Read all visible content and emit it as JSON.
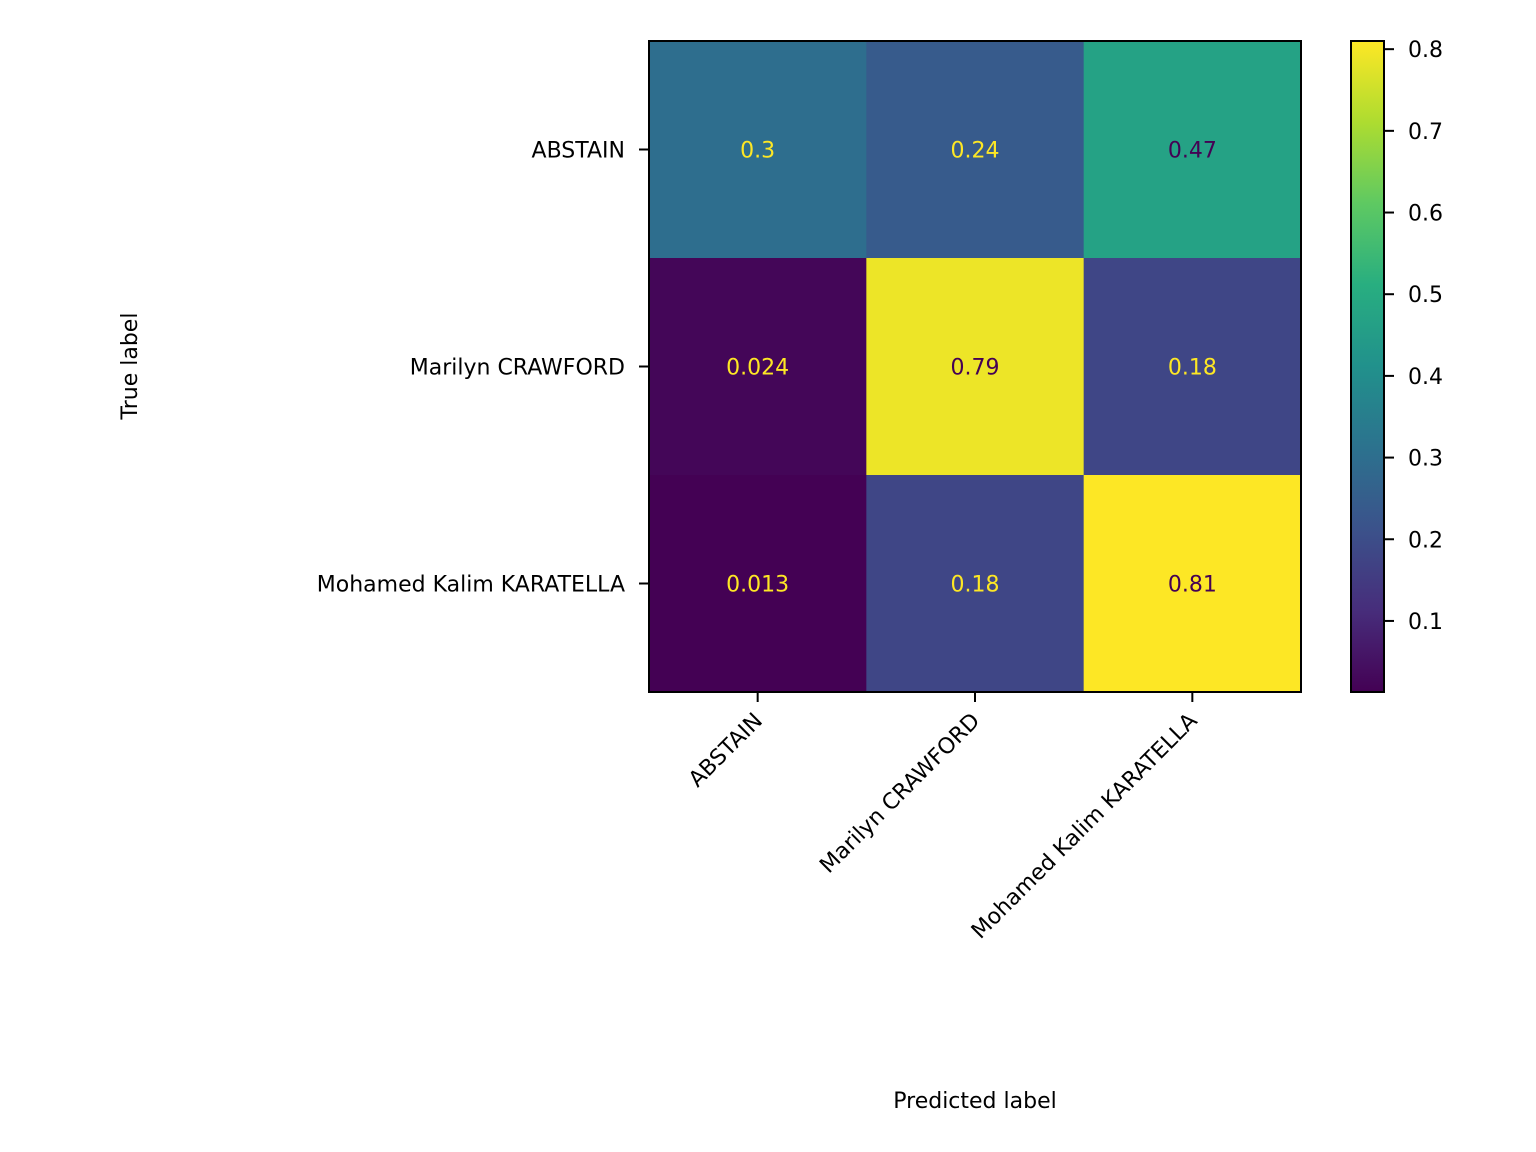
{
  "chart_data": {
    "type": "heatmap",
    "title": "",
    "xlabel": "Predicted label",
    "ylabel": "True label",
    "x_categories": [
      "ABSTAIN",
      "Marilyn CRAWFORD",
      "Mohamed Kalim KARATELLA"
    ],
    "y_categories": [
      "ABSTAIN",
      "Marilyn CRAWFORD",
      "Mohamed Kalim KARATELLA"
    ],
    "values": [
      [
        0.3,
        0.24,
        0.47
      ],
      [
        0.024,
        0.79,
        0.18
      ],
      [
        0.013,
        0.18,
        0.81
      ]
    ],
    "cell_labels": [
      [
        "0.3",
        "0.24",
        "0.47"
      ],
      [
        "0.024",
        "0.79",
        "0.18"
      ],
      [
        "0.013",
        "0.18",
        "0.81"
      ]
    ],
    "colormap": "viridis",
    "colorbar": {
      "range": [
        0.013,
        0.81
      ],
      "ticks": [
        0.1,
        0.2,
        0.3,
        0.4,
        0.5,
        0.6,
        0.7,
        0.8
      ],
      "tick_labels": [
        "0.1",
        "0.2",
        "0.3",
        "0.4",
        "0.5",
        "0.6",
        "0.7",
        "0.8"
      ]
    },
    "text_colors": {
      "light": "#fde725",
      "dark": "#440154"
    },
    "grid": false
  }
}
